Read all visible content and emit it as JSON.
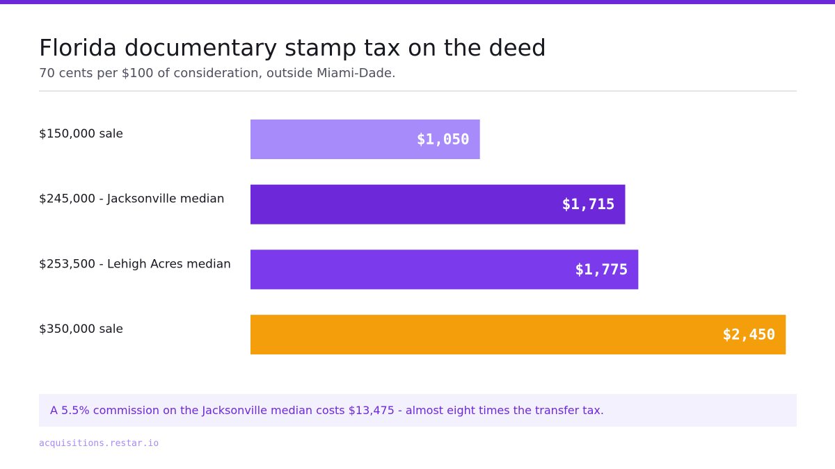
{
  "colors": {
    "accent": "#6d28d9",
    "top_bar": "#6d28d9",
    "callout_bg": "#f3f1fd",
    "callout_text": "#6d28d9",
    "footer_text": "#a78bfa"
  },
  "header": {
    "title": "Florida documentary stamp tax on the deed",
    "subtitle": "70 cents per $100 of consideration, outside Miami-Dade."
  },
  "chart_data": {
    "type": "bar",
    "orientation": "horizontal",
    "title": "Florida documentary stamp tax on the deed",
    "subtitle": "70 cents per $100 of consideration, outside Miami-Dade.",
    "xlabel": "",
    "ylabel": "",
    "xlim": [
      0,
      2500
    ],
    "grid": false,
    "legend": "none",
    "categories": [
      "$150,000 sale",
      "$245,000 - Jacksonville median",
      "$253,500 - Lehigh Acres median",
      "$350,000 sale"
    ],
    "values": [
      1050,
      1715,
      1775,
      2450
    ],
    "value_labels": [
      "$1,050",
      "$1,715",
      "$1,775",
      "$2,450"
    ],
    "bar_colors": [
      "#a78bfa",
      "#6d28d9",
      "#7c3aed",
      "#f59e0b"
    ]
  },
  "callout": {
    "text": "A 5.5% commission on the Jacksonville median costs $13,475 - almost eight times the transfer tax."
  },
  "footer": {
    "text": "acquisitions.restar.io"
  }
}
